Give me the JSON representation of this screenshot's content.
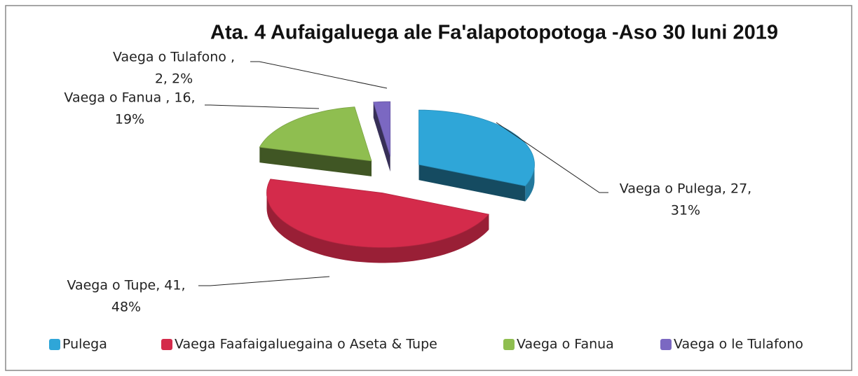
{
  "chart_data": {
    "type": "pie3d",
    "title": "Ata. 4   Aufaigaluega ale Fa'alapotopotoga -Aso 30 Iuni 2019",
    "categories": [
      "Pulega",
      "Vaega Faafaigaluegaina o Aseta & Tupe",
      "Vaega o Fanua",
      "Vaega o le Tulafono"
    ],
    "values": [
      27,
      41,
      16,
      2
    ],
    "value_labels": [
      [
        "Vaega o Pulega, 27,",
        "31%"
      ],
      [
        "Vaega o Tupe, 41,",
        "48%"
      ],
      [
        "Vaega o Fanua , 16,",
        "19%"
      ],
      [
        "Vaega o Tulafono ,",
        "2, 2%"
      ]
    ],
    "colors": [
      "#2fa6d8",
      "#d42b4b",
      "#8fbe50",
      "#7b68c2"
    ],
    "legend": "bottom"
  }
}
